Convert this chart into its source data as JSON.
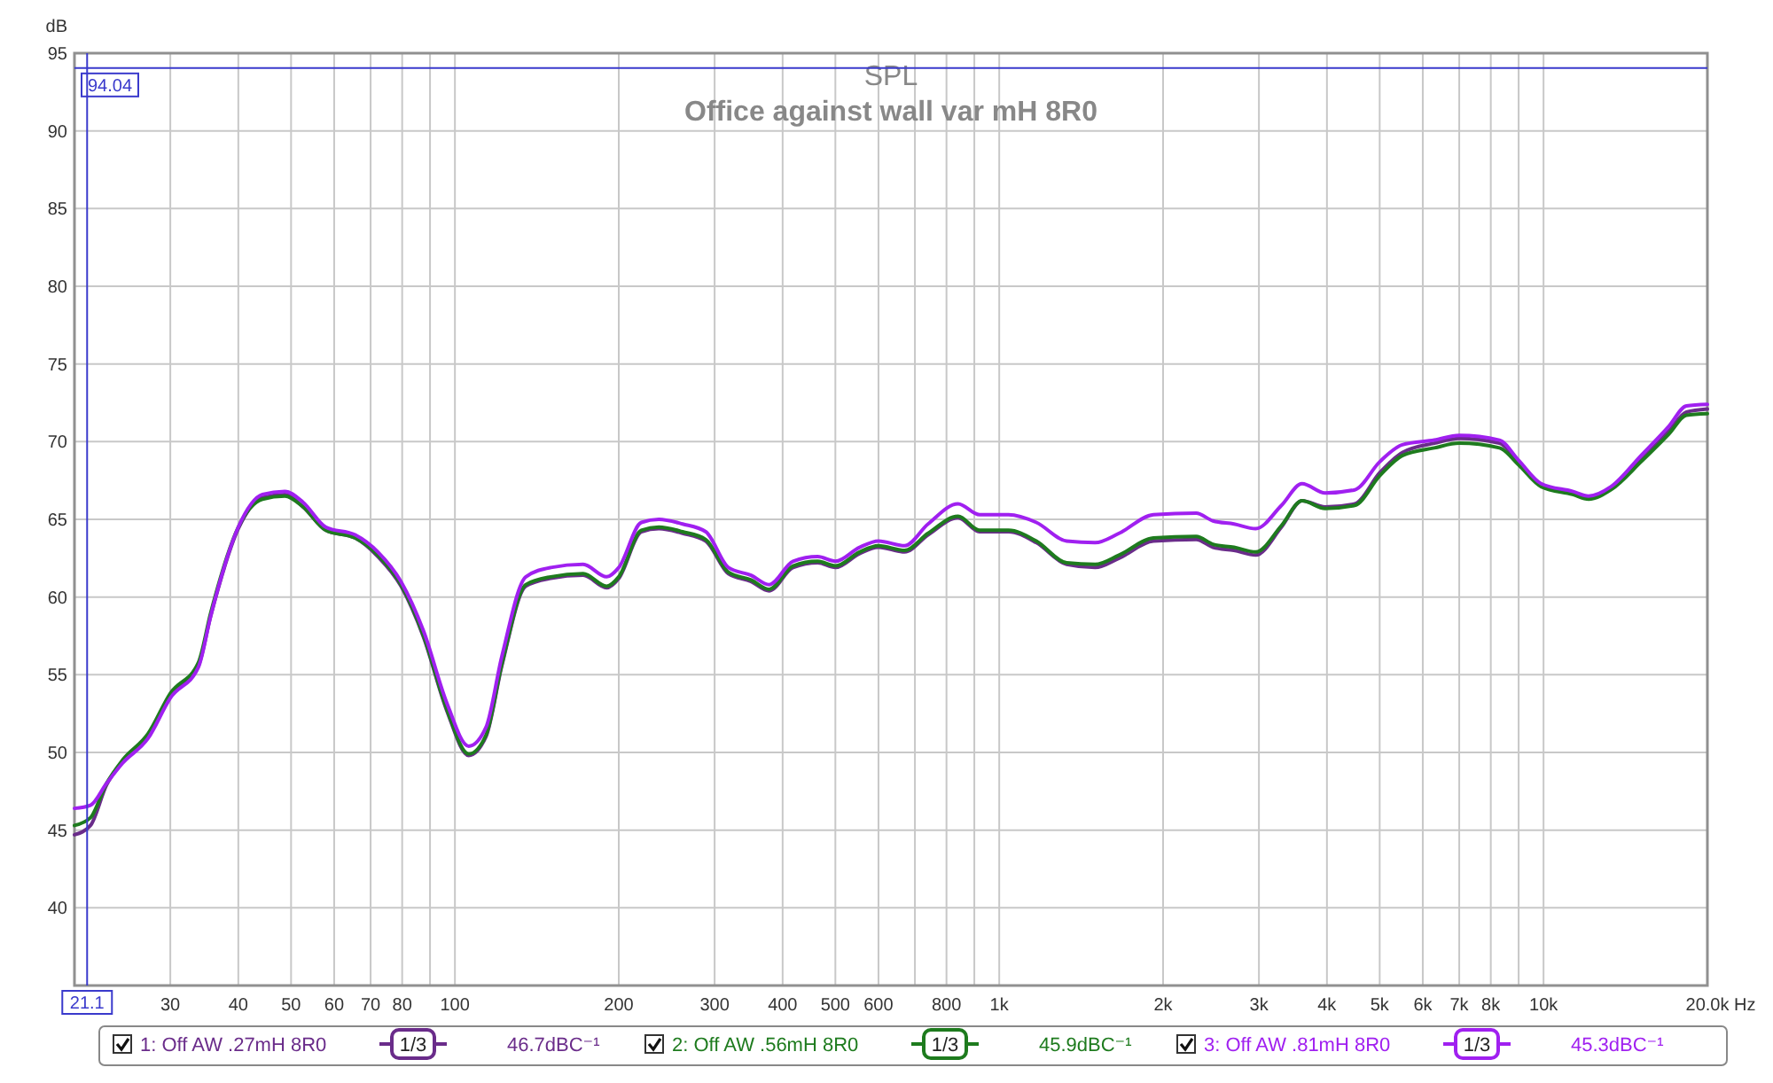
{
  "chart_data": {
    "type": "line",
    "title": "SPL",
    "subtitle": "Office against wall var mH 8R0",
    "ylabel": "dB",
    "x": [
      20,
      21.4,
      22.9,
      24.5,
      27.3,
      30,
      33.8,
      35.6,
      40,
      44.3,
      48.7,
      52.6,
      57.9,
      65.6,
      72.2,
      79.6,
      87.6,
      96.6,
      106,
      114,
      122,
      135,
      150,
      172,
      190,
      200,
      220,
      237,
      262,
      289,
      318,
      350,
      378,
      418,
      464,
      500,
      554,
      600,
      670,
      740,
      840,
      920,
      1040,
      1170,
      1330,
      1500,
      1660,
      1920,
      2300,
      2470,
      2700,
      2960,
      3300,
      3600,
      3970,
      4500,
      5000,
      5500,
      6300,
      7000,
      8300,
      9000,
      9900,
      11300,
      12100,
      13300,
      15100,
      17000,
      18300,
      20000
    ],
    "series": [
      {
        "name": "1: Off AW .27mH 8R0",
        "color": "#6a2c8a",
        "values": [
          44.7,
          45.3,
          47.9,
          49.4,
          51.0,
          53.6,
          55.6,
          58.8,
          64.4,
          66.4,
          66.6,
          65.8,
          64.3,
          63.8,
          62.6,
          60.7,
          57.4,
          52.7,
          49.8,
          51.0,
          55.6,
          60.7,
          61.2,
          61.4,
          60.6,
          61.2,
          64.2,
          64.4,
          64.1,
          63.6,
          61.5,
          61.0,
          60.4,
          61.9,
          62.2,
          61.9,
          62.8,
          63.2,
          62.9,
          64.0,
          65.1,
          64.2,
          64.2,
          63.5,
          62.1,
          61.9,
          62.5,
          63.6,
          63.7,
          63.2,
          63.0,
          62.7,
          64.5,
          66.2,
          65.8,
          66.0,
          68.0,
          69.3,
          69.9,
          70.2,
          69.9,
          68.7,
          67.2,
          66.7,
          66.4,
          67.0,
          68.8,
          70.7,
          71.9,
          72.1
        ]
      },
      {
        "name": "2: Off AW .56mH 8R0",
        "color": "#1e7b1e",
        "values": [
          45.3,
          45.8,
          48.0,
          49.5,
          51.2,
          53.8,
          55.8,
          59.0,
          64.5,
          66.3,
          66.5,
          65.8,
          64.3,
          63.8,
          62.7,
          60.8,
          57.5,
          52.8,
          49.9,
          51.1,
          55.7,
          60.8,
          61.3,
          61.5,
          60.7,
          61.3,
          64.3,
          64.5,
          64.2,
          63.7,
          61.6,
          61.1,
          60.5,
          62.0,
          62.3,
          62.0,
          62.9,
          63.3,
          63.0,
          64.1,
          65.2,
          64.3,
          64.3,
          63.6,
          62.2,
          62.1,
          62.7,
          63.8,
          63.9,
          63.4,
          63.2,
          62.9,
          64.6,
          66.2,
          65.7,
          65.9,
          67.8,
          69.1,
          69.6,
          69.9,
          69.6,
          68.5,
          67.1,
          66.6,
          66.3,
          66.9,
          68.7,
          70.5,
          71.7,
          71.8
        ]
      },
      {
        "name": "3: Off AW .81mH 8R0",
        "color": "#a020f0",
        "values": [
          46.4,
          46.6,
          48.0,
          49.3,
          50.9,
          53.5,
          55.5,
          58.8,
          64.5,
          66.6,
          66.8,
          66.1,
          64.5,
          64.0,
          62.9,
          61.0,
          57.8,
          53.2,
          50.4,
          51.6,
          56.2,
          61.3,
          61.9,
          62.1,
          61.3,
          61.9,
          64.8,
          65.0,
          64.7,
          64.2,
          61.9,
          61.4,
          60.8,
          62.3,
          62.6,
          62.3,
          63.2,
          63.6,
          63.3,
          64.7,
          66.0,
          65.3,
          65.3,
          64.8,
          63.6,
          63.5,
          64.1,
          65.3,
          65.4,
          64.9,
          64.7,
          64.4,
          65.9,
          67.3,
          66.7,
          66.9,
          68.7,
          69.8,
          70.1,
          70.4,
          70.1,
          68.8,
          67.3,
          66.8,
          66.5,
          67.1,
          69.1,
          71.0,
          72.3,
          72.4
        ]
      }
    ],
    "xlim": [
      20,
      20000
    ],
    "ylim": [
      35,
      95
    ],
    "log": "x",
    "xticks": [
      30,
      40,
      50,
      60,
      70,
      80,
      {
        "value": 90,
        "label": null
      },
      100,
      200,
      300,
      400,
      500,
      600,
      {
        "value": 700,
        "label": null
      },
      800,
      {
        "value": 900,
        "label": null
      },
      {
        "value": 1000,
        "label": "1k"
      },
      {
        "value": 2000,
        "label": "2k"
      },
      {
        "value": 3000,
        "label": "3k"
      },
      {
        "value": 4000,
        "label": "4k"
      },
      {
        "value": 5000,
        "label": "5k"
      },
      {
        "value": 6000,
        "label": "6k"
      },
      {
        "value": 7000,
        "label": "7k"
      },
      {
        "value": 8000,
        "label": "8k"
      },
      {
        "value": 9000,
        "label": null
      },
      {
        "value": 10000,
        "label": "10k"
      },
      {
        "value": 20000,
        "label": "20.0k"
      }
    ],
    "xlabel": "Hz",
    "yticks": [
      40,
      45,
      50,
      55,
      60,
      65,
      70,
      75,
      80,
      85,
      90,
      95
    ],
    "grid": true,
    "legend": "bottom",
    "ref_lines": [
      {
        "axis": "y",
        "value": 94.04,
        "label": "94.04",
        "color": "#3a3acc"
      },
      {
        "axis": "x",
        "value": 21.1,
        "label": "21.1",
        "color": "#3a3acc"
      }
    ],
    "annotations": [
      "1/3",
      "46.7dBC⁻¹",
      "1/3",
      "45.9dBC⁻¹",
      "1/3",
      "45.3dBC⁻¹"
    ]
  }
}
